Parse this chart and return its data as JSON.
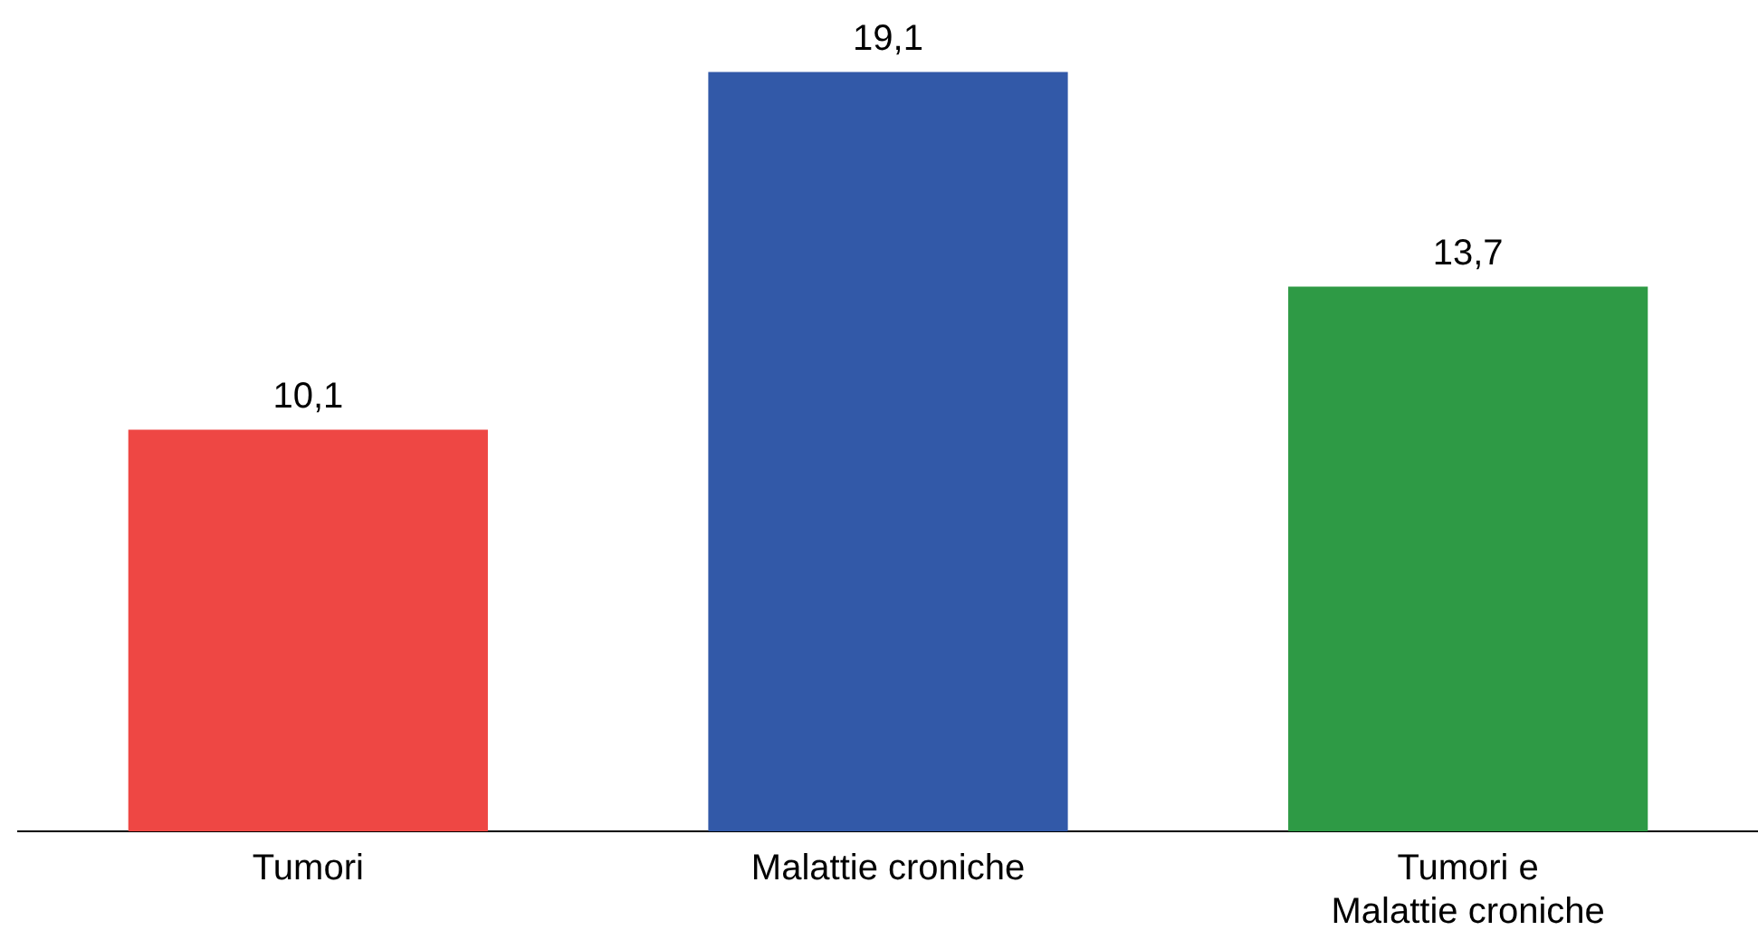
{
  "chart_data": {
    "type": "bar",
    "categories": [
      "Tumori",
      "Malattie croniche",
      "Tumori e Malattie croniche"
    ],
    "values": [
      10.1,
      19.1,
      13.7
    ],
    "colors": [
      "#ee4744",
      "#3259a8",
      "#2e9a45"
    ],
    "value_labels": [
      "10,1",
      "19,1",
      "13,7"
    ],
    "tick_labels": "x",
    "grid": false,
    "legend": false
  }
}
